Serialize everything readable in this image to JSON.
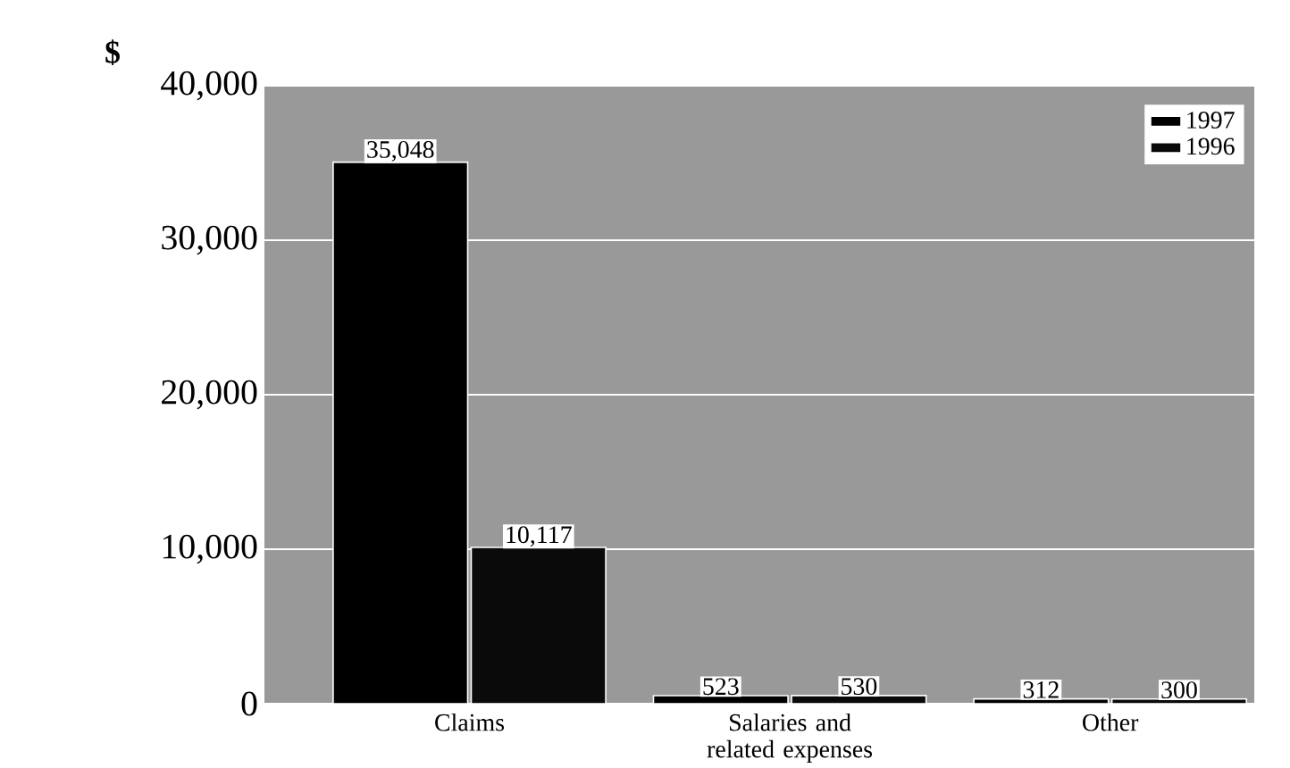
{
  "chart_data": {
    "type": "bar",
    "ylabel": "$",
    "categories": [
      "Claims",
      "Salaries and related expenses",
      "Other"
    ],
    "series": [
      {
        "name": "1997",
        "color": "#000000",
        "values": [
          35048,
          523,
          312
        ],
        "value_labels": [
          "35,048",
          "523",
          "312"
        ]
      },
      {
        "name": "1996",
        "color": "#0a0a0a",
        "values": [
          10117,
          530,
          300
        ],
        "value_labels": [
          "10,117",
          "530",
          "300"
        ]
      }
    ],
    "ylim": [
      0,
      40000
    ],
    "yticks": [
      0,
      {
        "value": 10000,
        "label": "10,000"
      },
      {
        "value": 20000,
        "label": "20,000"
      },
      {
        "value": 30000,
        "label": "30,000"
      },
      {
        "value": 40000,
        "label": "40,000"
      }
    ],
    "grid": "y",
    "legend": "top right"
  }
}
